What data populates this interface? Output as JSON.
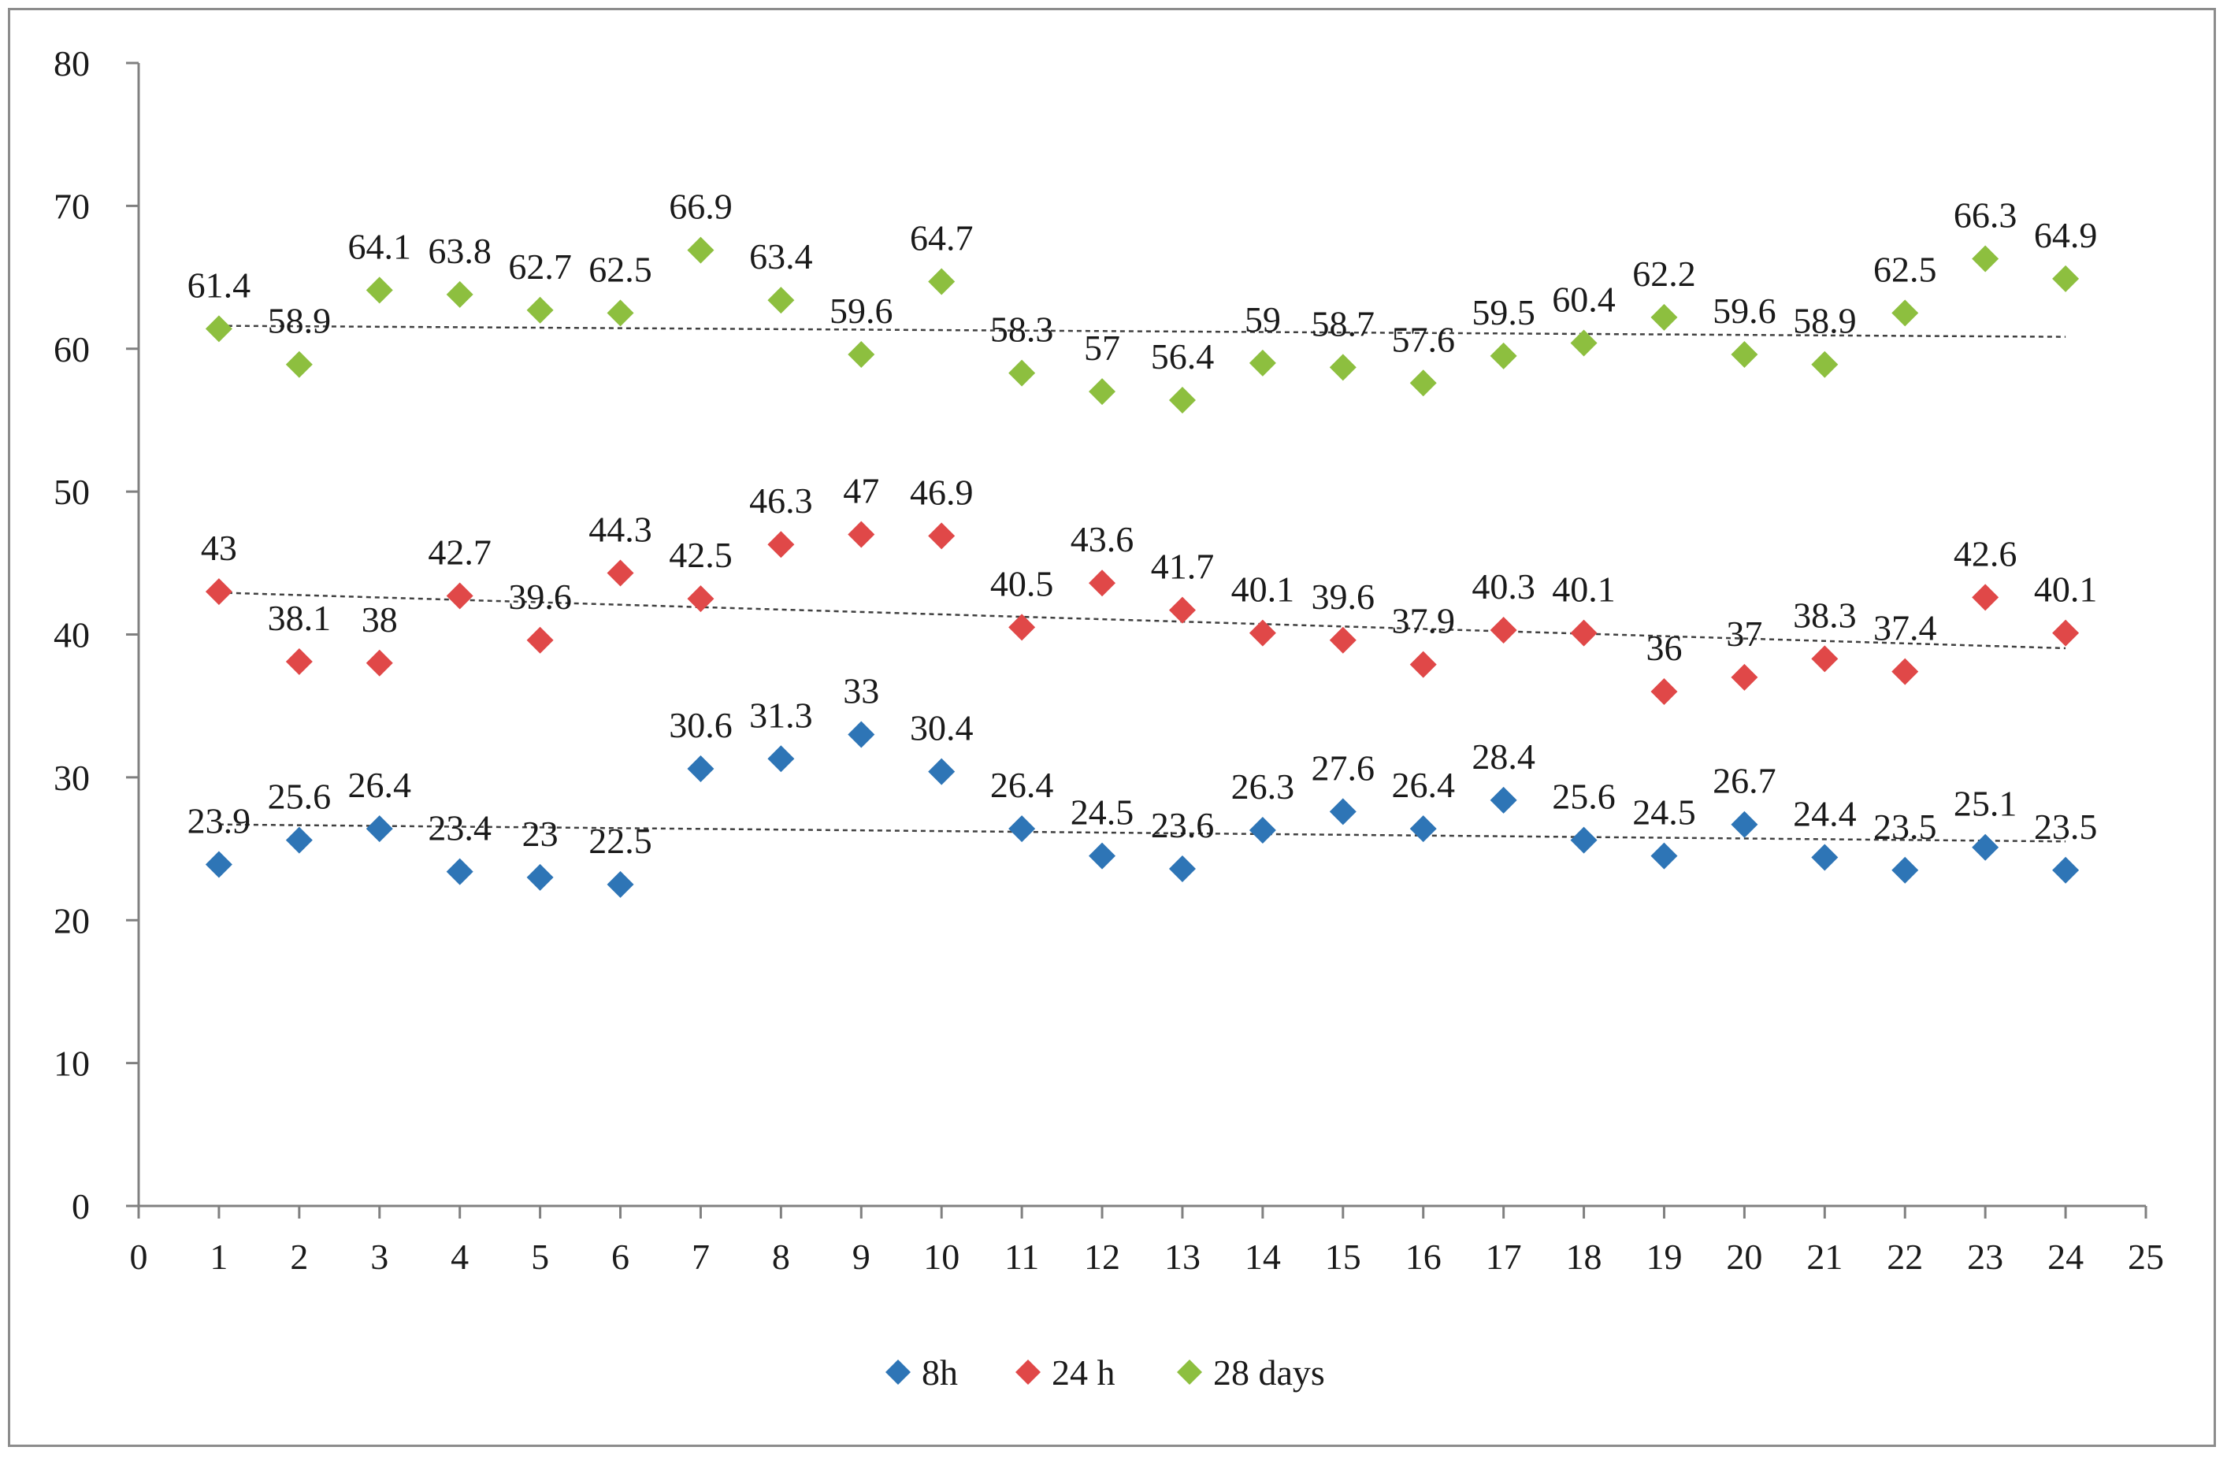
{
  "chart_data": {
    "type": "scatter",
    "title": "",
    "xlabel": "",
    "ylabel": "",
    "xlim": [
      0,
      25
    ],
    "ylim": [
      0,
      80
    ],
    "x_ticks": [
      "0",
      "1",
      "2",
      "3",
      "4",
      "5",
      "6",
      "7",
      "8",
      "9",
      "10",
      "11",
      "12",
      "13",
      "14",
      "15",
      "16",
      "17",
      "18",
      "19",
      "20",
      "21",
      "22",
      "23",
      "24",
      "25"
    ],
    "y_ticks": [
      "0",
      "10",
      "20",
      "30",
      "40",
      "50",
      "60",
      "70",
      "80"
    ],
    "grid": false,
    "legend_position": "bottom-center",
    "x": [
      1,
      2,
      3,
      4,
      5,
      6,
      7,
      8,
      9,
      10,
      11,
      12,
      13,
      14,
      15,
      16,
      17,
      18,
      19,
      20,
      21,
      22,
      23,
      24
    ],
    "series": [
      {
        "name": "8h",
        "color": "#2E75B6",
        "marker": "diamond",
        "values": [
          23.9,
          25.6,
          26.4,
          23.4,
          23,
          22.5,
          30.6,
          31.3,
          33,
          30.4,
          26.4,
          24.5,
          23.6,
          26.3,
          27.6,
          26.4,
          28.4,
          25.6,
          24.5,
          26.7,
          24.4,
          23.5,
          25.1,
          23.5
        ],
        "labels": [
          "23.9",
          "25.6",
          "26.4",
          "23.4",
          "23",
          "22.5",
          "30.6",
          "31.3",
          "33",
          "30.4",
          "26.4",
          "24.5",
          "23.6",
          "26.3",
          "27.6",
          "26.4",
          "28.4",
          "25.6",
          "24.5",
          "26.7",
          "24.4",
          "23.5",
          "25.1",
          "23.5"
        ],
        "trendline": "linear"
      },
      {
        "name": "24 h",
        "color": "#E04848",
        "marker": "diamond",
        "values": [
          43,
          38.1,
          38,
          42.7,
          39.6,
          44.3,
          42.5,
          46.3,
          47,
          46.9,
          40.5,
          43.6,
          41.7,
          40.1,
          39.6,
          37.9,
          40.3,
          40.1,
          36,
          37,
          38.3,
          37.4,
          42.6,
          40.1
        ],
        "labels": [
          "43",
          "38.1",
          "38",
          "42.7",
          "39.6",
          "44.3",
          "42.5",
          "46.3",
          "47",
          "46.9",
          "40.5",
          "43.6",
          "41.7",
          "40.1",
          "39.6",
          "37.9",
          "40.3",
          "40.1",
          "36",
          "37",
          "38.3",
          "37.4",
          "42.6",
          "40.1"
        ],
        "trendline": "linear"
      },
      {
        "name": "28 days",
        "color": "#8DBF3F",
        "marker": "diamond",
        "values": [
          61.4,
          58.9,
          64.1,
          63.8,
          62.7,
          62.5,
          66.9,
          63.4,
          59.6,
          64.7,
          58.3,
          57,
          56.4,
          59,
          58.7,
          57.6,
          59.5,
          60.4,
          62.2,
          59.6,
          58.9,
          62.5,
          66.3,
          64.9
        ],
        "labels": [
          "61.4",
          "58.9",
          "64.1",
          "63.8",
          "62.7",
          "62.5",
          "66.9",
          "63.4",
          "59.6",
          "64.7",
          "58.3",
          "57",
          "56.4",
          "59",
          "58.7",
          "57.6",
          "59.5",
          "60.4",
          "62.2",
          "59.6",
          "58.9",
          "62.5",
          "66.3",
          "64.9"
        ],
        "trendline": "linear"
      }
    ],
    "legend": [
      "8h",
      "24 h",
      "28 days"
    ],
    "axis_color": "#808080",
    "trendline_color": "#404040"
  }
}
